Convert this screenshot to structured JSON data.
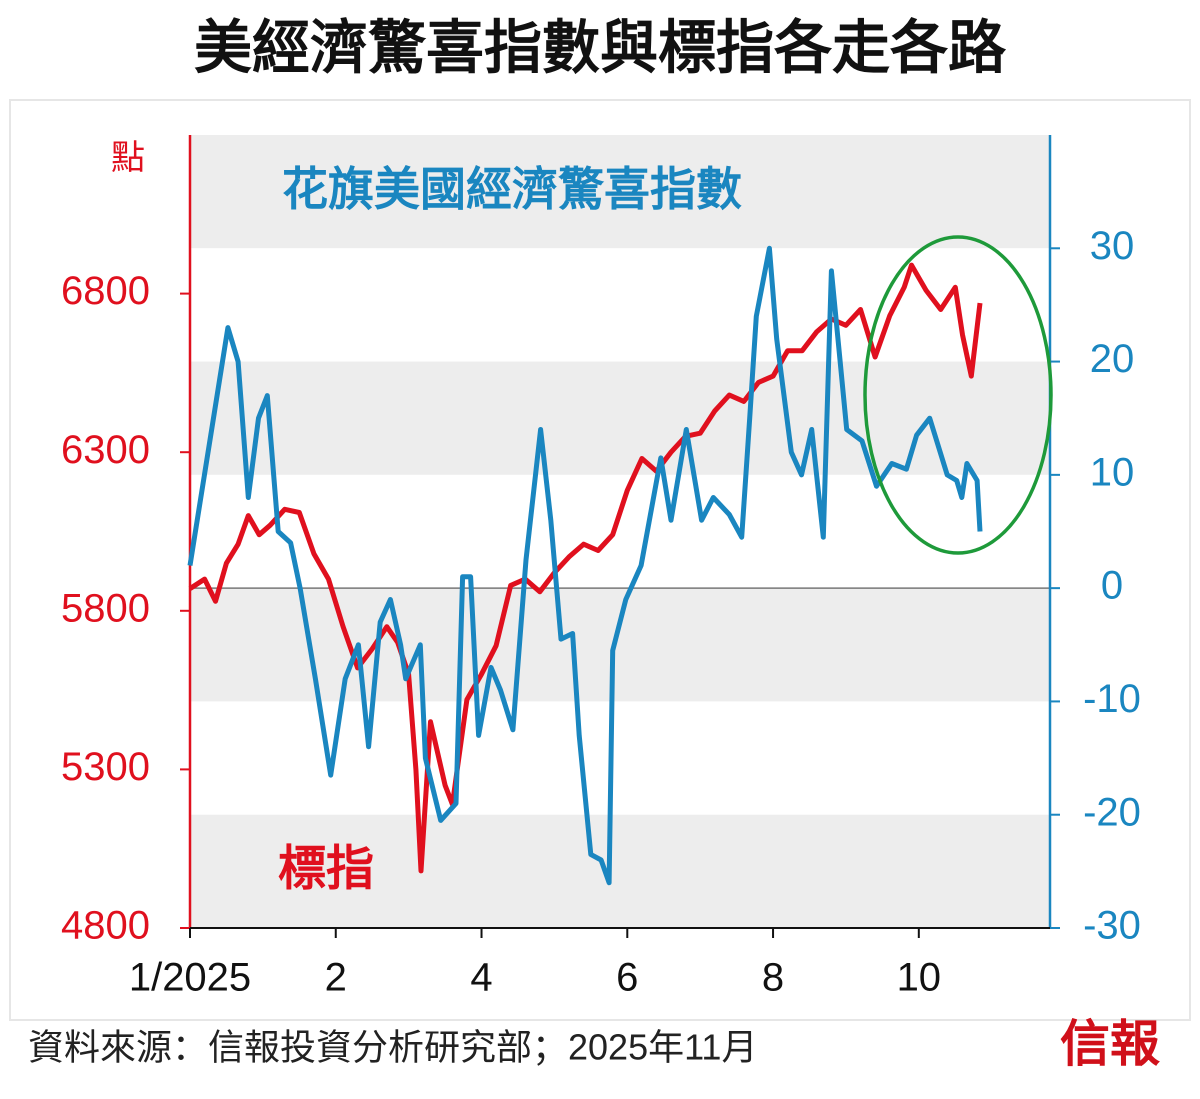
{
  "chart_data": {
    "type": "line",
    "title": "美經濟驚喜指數與標指各走各路",
    "y_label": "點",
    "source": "資料來源：信報投資分析研究部；2025年11月",
    "logo": "信報",
    "xlim": [
      0,
      11.8
    ],
    "xticks": [
      {
        "value": 0,
        "label": "1/2025"
      },
      2,
      4,
      6,
      8,
      10
    ],
    "x_tick_labels_note_free": null,
    "ylim": [
      4800,
      7300
    ],
    "yticks": [
      4800,
      5300,
      5800,
      6300,
      6800
    ],
    "y2lim": [
      -30,
      40
    ],
    "y2ticks": [
      -30,
      -20,
      -10,
      0,
      10,
      20,
      30
    ],
    "series": [
      {
        "name": "標指",
        "color": "#e0101e",
        "axis": "y",
        "x": [
          0,
          0.2,
          0.35,
          0.5,
          0.66,
          0.8,
          0.95,
          1.1,
          1.3,
          1.5,
          1.7,
          1.9,
          2.1,
          2.3,
          2.5,
          2.7,
          2.85,
          3.0,
          3.1,
          3.17,
          3.3,
          3.5,
          3.6,
          3.8,
          4.0,
          4.2,
          4.4,
          4.6,
          4.8,
          5.0,
          5.2,
          5.4,
          5.6,
          5.8,
          6.0,
          6.2,
          6.4,
          6.6,
          6.8,
          7.0,
          7.2,
          7.4,
          7.6,
          7.8,
          8.0,
          8.2,
          8.4,
          8.6,
          8.8,
          9.0,
          9.2,
          9.4,
          9.6,
          9.8,
          9.9,
          10.1,
          10.3,
          10.5,
          10.6,
          10.72,
          10.84
        ],
        "values": [
          5870,
          5900,
          5830,
          5950,
          6010,
          6100,
          6040,
          6070,
          6120,
          6110,
          5980,
          5900,
          5750,
          5620,
          5680,
          5750,
          5700,
          5600,
          5300,
          4980,
          5450,
          5250,
          5190,
          5520,
          5600,
          5690,
          5880,
          5900,
          5860,
          5920,
          5970,
          6010,
          5990,
          6040,
          6180,
          6280,
          6240,
          6300,
          6350,
          6360,
          6430,
          6480,
          6460,
          6520,
          6540,
          6620,
          6620,
          6680,
          6720,
          6700,
          6750,
          6600,
          6730,
          6820,
          6890,
          6810,
          6750,
          6820,
          6670,
          6540,
          6770
        ]
      },
      {
        "name": "花旗美國經濟驚喜指數",
        "color": "#1a86c0",
        "axis": "y2",
        "x": [
          0,
          0.52,
          0.66,
          0.8,
          0.94,
          1.06,
          1.21,
          1.38,
          1.51,
          1.72,
          1.93,
          2.13,
          2.31,
          2.45,
          2.61,
          2.75,
          2.89,
          2.96,
          3.16,
          3.23,
          3.44,
          3.65,
          3.74,
          3.85,
          3.96,
          4.13,
          4.26,
          4.43,
          4.61,
          4.81,
          4.95,
          5.09,
          5.25,
          5.34,
          5.5,
          5.64,
          5.75,
          5.8,
          5.98,
          6.19,
          6.46,
          6.6,
          6.81,
          7.02,
          7.18,
          7.4,
          7.57,
          7.68,
          7.77,
          7.95,
          8.05,
          8.25,
          8.39,
          8.53,
          8.69,
          8.8,
          9.01,
          9.22,
          9.42,
          9.63,
          9.83,
          9.97,
          10.15,
          10.39,
          10.52,
          10.59,
          10.66,
          10.8,
          10.84
        ],
        "values": [
          2,
          23,
          20,
          8,
          15,
          17,
          5,
          4,
          0,
          -8,
          -16.5,
          -8,
          -5,
          -14,
          -3,
          -1,
          -5,
          -8,
          -5,
          -15,
          -20.5,
          -19,
          1,
          1,
          -13,
          -7,
          -9,
          -12.5,
          2.5,
          14,
          6,
          -4.5,
          -4,
          -13,
          -23.5,
          -24,
          -26,
          -5.5,
          -1,
          2,
          11.5,
          6,
          14,
          6,
          8,
          6.5,
          4.5,
          15,
          24,
          30,
          22,
          12,
          10,
          14,
          4.5,
          28,
          14,
          13,
          9,
          11,
          10.5,
          13.5,
          15,
          10,
          9.5,
          8,
          11,
          9.5,
          5
        ]
      }
    ]
  }
}
